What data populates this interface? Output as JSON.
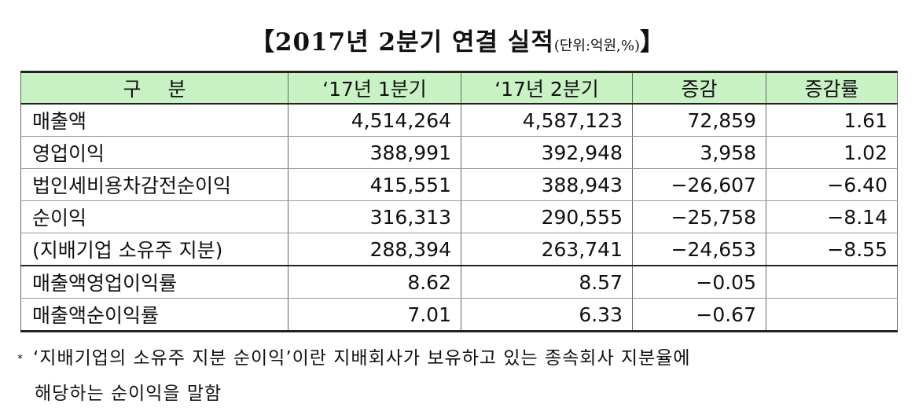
{
  "title": {
    "main": "【2017년 2분기 연결 실적",
    "unit": "(단위:억원,%)",
    "close": "】"
  },
  "table": {
    "headers": [
      "구분",
      "‘17년 1분기",
      "‘17년 2분기",
      "증감",
      "증감률"
    ],
    "rows": [
      {
        "label": "매출액",
        "q1": "4,514,264",
        "q2": "4,587,123",
        "diff": "72,859",
        "rate": "1.61"
      },
      {
        "label": "영업이익",
        "q1": "388,991",
        "q2": "392,948",
        "diff": "3,958",
        "rate": "1.02"
      },
      {
        "label": "법인세비용차감전순이익",
        "q1": "415,551",
        "q2": "388,943",
        "diff": "−26,607",
        "rate": "−6.40"
      },
      {
        "label": "순이익",
        "q1": "316,313",
        "q2": "290,555",
        "diff": "−25,758",
        "rate": "−8.14"
      },
      {
        "label": "(지배기업 소유주 지분)",
        "q1": "288,394",
        "q2": "263,741",
        "diff": "−24,653",
        "rate": "−8.55"
      },
      {
        "label": "매출액영업이익률",
        "q1": "8.62",
        "q2": "8.57",
        "diff": "−0.05",
        "rate": ""
      },
      {
        "label": "매출액순이익률",
        "q1": "7.01",
        "q2": "6.33",
        "diff": "−0.67",
        "rate": ""
      }
    ]
  },
  "footnote": {
    "mark": "*",
    "line1": "‘지배기업의 소유주 지분 순이익’이란 지배회사가 보유하고 있는 종속회사 지분율에",
    "line2": "해당하는 순이익을 말함"
  }
}
